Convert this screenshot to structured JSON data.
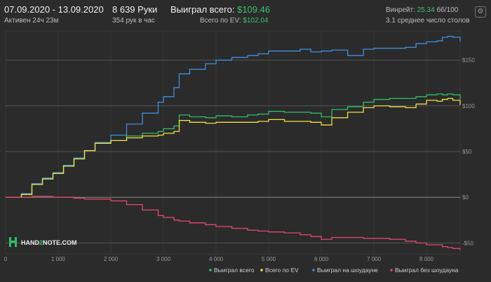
{
  "header": {
    "date_range": "07.09.2020 - 13.09.2020",
    "active": "Активен 24ч 23м",
    "hands": "8 639 Руки",
    "hands_per_hour": "354 рук в час",
    "won_total_label": "Выиграл всего:",
    "won_total_value": "$109.46",
    "ev_label": "Всего по EV:",
    "ev_value": "$102.04",
    "winrate_label": "Винрейт:",
    "winrate_value": "25.34",
    "winrate_unit": "бб/100",
    "tables": "3.1 среднее число столов",
    "gear_icon": "gear-icon"
  },
  "logo": {
    "text_left": "HAND",
    "text_num": "2",
    "text_right": "NOTE.COM"
  },
  "chart_data": {
    "type": "line",
    "xlim": [
      0,
      8639
    ],
    "ylim": [
      -62,
      182
    ],
    "x_ticks": [
      0,
      1000,
      2000,
      3000,
      4000,
      5000,
      6000,
      7000,
      8000
    ],
    "x_tick_labels": [
      "0",
      "1 000",
      "2 000",
      "3 000",
      "4 000",
      "5 000",
      "6 000",
      "7 000",
      "8 000"
    ],
    "y_ticks": [
      150,
      100,
      50,
      0,
      -50
    ],
    "y_tick_labels": [
      "$150",
      "$100",
      "$50",
      "$0",
      "-$50"
    ],
    "series": [
      {
        "name": "Выиграл на шоудауне",
        "color": "#3d8fe0",
        "x": [
          0,
          300,
          500,
          700,
          900,
          1100,
          1300,
          1500,
          1700,
          2000,
          2300,
          2600,
          2900,
          3000,
          3200,
          3300,
          3500,
          3800,
          4000,
          4300,
          4600,
          4800,
          5000,
          5300,
          5600,
          5800,
          6000,
          6200,
          6500,
          6800,
          7000,
          7300,
          7600,
          7800,
          8000,
          8200,
          8300,
          8400,
          8500,
          8639
        ],
        "y": [
          0,
          4,
          15,
          21,
          27,
          35,
          43,
          51,
          60,
          68,
          80,
          92,
          104,
          110,
          120,
          135,
          140,
          146,
          150,
          153,
          155,
          157,
          160,
          160,
          162,
          159,
          160,
          161,
          155,
          162,
          163,
          163,
          164,
          168,
          170,
          171,
          175,
          176,
          175,
          170
        ]
      },
      {
        "name": "Выиграл всего",
        "color": "#2fbf6a",
        "x": [
          0,
          300,
          500,
          700,
          900,
          1100,
          1300,
          1500,
          1700,
          2000,
          2300,
          2600,
          2900,
          3000,
          3200,
          3300,
          3500,
          3800,
          4000,
          4300,
          4600,
          4800,
          5000,
          5300,
          5600,
          5800,
          6000,
          6200,
          6500,
          6800,
          7000,
          7300,
          7600,
          7800,
          8000,
          8200,
          8300,
          8400,
          8500,
          8639
        ],
        "y": [
          0,
          3,
          14,
          20,
          26,
          34,
          42,
          51,
          59,
          62,
          67,
          70,
          72,
          75,
          78,
          90,
          88,
          87,
          89,
          88,
          90,
          91,
          94,
          93,
          93,
          92,
          88,
          96,
          99,
          104,
          107,
          108,
          108,
          110,
          112,
          113,
          112,
          113,
          112,
          107
        ]
      },
      {
        "name": "Всего по EV",
        "color": "#f0e040",
        "x": [
          0,
          300,
          500,
          700,
          900,
          1100,
          1300,
          1500,
          1700,
          2000,
          2300,
          2600,
          2900,
          3000,
          3200,
          3300,
          3500,
          3800,
          4000,
          4300,
          4600,
          4800,
          5000,
          5300,
          5600,
          5800,
          6000,
          6200,
          6500,
          6800,
          7000,
          7300,
          7600,
          7800,
          8000,
          8200,
          8300,
          8400,
          8500,
          8639
        ],
        "y": [
          0,
          3,
          14,
          20,
          26,
          34,
          42,
          51,
          59,
          62,
          65,
          67,
          68,
          70,
          72,
          84,
          82,
          81,
          82,
          82,
          82,
          83,
          85,
          83,
          83,
          82,
          79,
          87,
          93,
          98,
          100,
          99,
          98,
          102,
          106,
          105,
          107,
          108,
          106,
          101
        ]
      },
      {
        "name": "Выиграл без шоудауна",
        "color": "#e04a6c",
        "x": [
          0,
          300,
          500,
          700,
          900,
          1100,
          1300,
          1500,
          1700,
          2000,
          2300,
          2600,
          2900,
          3000,
          3200,
          3300,
          3500,
          3800,
          4000,
          4300,
          4600,
          4800,
          5000,
          5300,
          5600,
          5800,
          6000,
          6200,
          6500,
          6800,
          7000,
          7300,
          7600,
          7800,
          8000,
          8200,
          8300,
          8400,
          8500,
          8639
        ],
        "y": [
          0,
          0,
          1,
          1,
          0,
          0,
          -1,
          -2,
          -2,
          -4,
          -8,
          -14,
          -20,
          -22,
          -25,
          -26,
          -28,
          -30,
          -32,
          -34,
          -36,
          -37,
          -38,
          -39,
          -41,
          -43,
          -46,
          -44,
          -44,
          -45,
          -45,
          -46,
          -48,
          -50,
          -52,
          -52,
          -54,
          -55,
          -56,
          -58
        ]
      }
    ]
  }
}
